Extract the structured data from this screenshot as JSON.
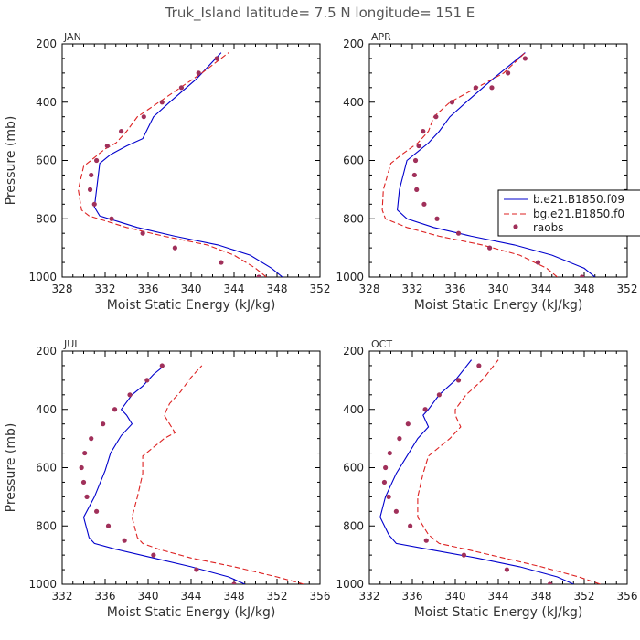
{
  "title": "Truk_Island  latitude= 7.5 N longitude= 151 E",
  "legend": {
    "entries": [
      "b.e21.B1850.f09",
      "bg.e21.B1850.f0",
      "raobs"
    ]
  },
  "colors": {
    "model_b": "#0000cc",
    "model_bg": "#dd2222",
    "raobs": "#a0305a"
  },
  "chart_data": [
    {
      "type": "line",
      "title": "JAN",
      "xlabel": "Moist Static Energy (kJ/kg)",
      "ylabel": "Pressure (mb)",
      "xlim": [
        328,
        352
      ],
      "ylim": [
        1000,
        200
      ],
      "xticks": [
        328,
        332,
        336,
        340,
        344,
        348,
        352
      ],
      "yticks": [
        200,
        400,
        600,
        800,
        1000
      ],
      "series": [
        {
          "name": "b.e21.B1850.f09",
          "style": "solid",
          "x": [
            348.5,
            347.5,
            345.5,
            342.5,
            338.5,
            335.0,
            331.5,
            331.0,
            331.2,
            331.5,
            332.5,
            334.0,
            335.5,
            336.5,
            338.0,
            340.5,
            342.8
          ],
          "y": [
            1000,
            970,
            925,
            890,
            860,
            830,
            790,
            760,
            700,
            610,
            580,
            550,
            525,
            450,
            400,
            320,
            230
          ]
        },
        {
          "name": "bg.e21.B1850.f0",
          "style": "dashed",
          "x": [
            347.0,
            346.0,
            344.0,
            341.5,
            337.5,
            334.0,
            330.5,
            329.8,
            329.5,
            330.0,
            331.0,
            332.0,
            333.0,
            334.0,
            335.0,
            337.0,
            339.0,
            341.0,
            343.5
          ],
          "y": [
            1000,
            970,
            925,
            890,
            860,
            830,
            790,
            770,
            700,
            620,
            590,
            560,
            540,
            500,
            450,
            400,
            350,
            300,
            230
          ]
        },
        {
          "name": "raobs",
          "style": "dots",
          "x": [
            346.3,
            342.8,
            338.5,
            335.5,
            332.6,
            331.0,
            330.6,
            330.7,
            331.2,
            332.2,
            333.5,
            335.6,
            337.3,
            339.1,
            340.7,
            342.4
          ],
          "y": [
            1000,
            950,
            900,
            850,
            800,
            750,
            700,
            650,
            600,
            550,
            500,
            450,
            400,
            350,
            300,
            250
          ]
        }
      ]
    },
    {
      "type": "line",
      "title": "APR",
      "xlabel": "Moist Static Energy (kJ/kg)",
      "ylabel": "Pressure (mb)",
      "xlim": [
        328,
        352
      ],
      "ylim": [
        1000,
        200
      ],
      "xticks": [
        328,
        332,
        336,
        340,
        344,
        348,
        352
      ],
      "yticks": [
        200,
        400,
        600,
        800,
        1000
      ],
      "series": [
        {
          "name": "b.e21.B1850.f09",
          "style": "solid",
          "x": [
            349.0,
            348.0,
            345.0,
            341.5,
            337.5,
            334.0,
            331.5,
            330.6,
            330.8,
            331.5,
            332.5,
            333.5,
            334.5,
            335.5,
            337.0,
            339.5,
            342.5
          ],
          "y": [
            1000,
            970,
            925,
            890,
            860,
            830,
            800,
            770,
            700,
            600,
            570,
            540,
            500,
            450,
            400,
            320,
            230
          ]
        },
        {
          "name": "bg.e21.B1850.f0",
          "style": "dashed",
          "x": [
            345.5,
            344.5,
            342.0,
            338.5,
            334.5,
            331.5,
            329.5,
            329.2,
            329.3,
            330.0,
            331.0,
            332.5,
            333.5,
            334.0,
            335.5,
            338.0,
            340.5,
            342.5
          ],
          "y": [
            1000,
            970,
            925,
            890,
            860,
            830,
            800,
            770,
            700,
            610,
            580,
            540,
            500,
            450,
            400,
            350,
            300,
            230
          ]
        },
        {
          "name": "raobs",
          "style": "dots",
          "x": [
            347.8,
            343.7,
            339.2,
            336.3,
            334.3,
            333.1,
            332.4,
            332.2,
            332.3,
            332.6,
            333.0,
            334.2,
            335.7,
            337.9,
            339.4,
            340.9,
            342.5
          ],
          "y": [
            1000,
            950,
            900,
            850,
            800,
            750,
            700,
            650,
            600,
            550,
            500,
            450,
            400,
            350,
            350,
            300,
            250
          ]
        }
      ]
    },
    {
      "type": "line",
      "title": "JUL",
      "xlabel": "Moist Static Energy (kJ/kg)",
      "ylabel": "Pressure (mb)",
      "xlim": [
        332,
        356
      ],
      "ylim": [
        1000,
        200
      ],
      "xticks": [
        332,
        336,
        340,
        344,
        348,
        352,
        356
      ],
      "yticks": [
        200,
        400,
        600,
        800,
        1000
      ],
      "series": [
        {
          "name": "b.e21.B1850.f09",
          "style": "solid",
          "x": [
            349.0,
            347.5,
            344.0,
            340.5,
            337.0,
            335.0,
            334.5,
            334.0,
            335.0,
            336.0,
            336.5,
            337.5,
            338.5,
            338.0,
            337.5,
            338.5,
            339.5,
            340.5,
            341.5
          ],
          "y": [
            1000,
            975,
            940,
            910,
            880,
            860,
            840,
            770,
            700,
            610,
            550,
            490,
            450,
            420,
            400,
            350,
            320,
            280,
            250
          ]
        },
        {
          "name": "bg.e21.B1850.f0",
          "style": "dashed",
          "x": [
            354.5,
            352.0,
            348.0,
            344.0,
            341.0,
            339.5,
            339.0,
            338.5,
            339.0,
            339.5,
            339.5,
            341.5,
            342.5,
            342.0,
            341.5,
            342.0,
            343.0,
            344.0,
            345.0
          ],
          "y": [
            1000,
            975,
            940,
            910,
            880,
            860,
            840,
            770,
            700,
            620,
            560,
            500,
            480,
            450,
            420,
            380,
            340,
            290,
            250
          ]
        },
        {
          "name": "raobs",
          "style": "dots",
          "x": [
            348.0,
            344.5,
            340.5,
            337.8,
            336.3,
            335.2,
            334.3,
            334.0,
            333.8,
            334.1,
            334.7,
            335.8,
            336.9,
            338.3,
            339.9,
            341.3
          ],
          "y": [
            1000,
            950,
            900,
            850,
            800,
            750,
            700,
            650,
            600,
            550,
            500,
            450,
            400,
            350,
            300,
            250
          ]
        }
      ]
    },
    {
      "type": "line",
      "title": "OCT",
      "xlabel": "Moist Static Energy (kJ/kg)",
      "ylabel": "Pressure (mb)",
      "xlim": [
        332,
        356
      ],
      "ylim": [
        1000,
        200
      ],
      "xticks": [
        332,
        336,
        340,
        344,
        348,
        352,
        356
      ],
      "yticks": [
        200,
        400,
        600,
        800,
        1000
      ],
      "series": [
        {
          "name": "b.e21.B1850.f09",
          "style": "solid",
          "x": [
            351.0,
            349.5,
            346.0,
            342.0,
            337.5,
            334.5,
            333.8,
            333.0,
            333.5,
            334.5,
            335.5,
            336.5,
            337.5,
            337.0,
            337.5,
            338.5,
            340.0,
            341.5
          ],
          "y": [
            1000,
            975,
            940,
            910,
            880,
            860,
            830,
            770,
            700,
            620,
            560,
            500,
            460,
            420,
            400,
            350,
            300,
            230
          ]
        },
        {
          "name": "bg.e21.B1850.f0",
          "style": "dashed",
          "x": [
            353.5,
            351.5,
            348.0,
            344.5,
            341.0,
            338.5,
            337.5,
            336.5,
            336.5,
            337.0,
            337.5,
            339.5,
            340.5,
            340.0,
            340.0,
            341.0,
            342.5,
            344.0
          ],
          "y": [
            1000,
            975,
            940,
            910,
            880,
            860,
            830,
            770,
            700,
            620,
            560,
            500,
            460,
            420,
            400,
            350,
            300,
            230
          ]
        },
        {
          "name": "raobs",
          "style": "dots",
          "x": [
            348.8,
            344.8,
            340.8,
            337.3,
            335.8,
            334.5,
            333.8,
            333.4,
            333.5,
            333.9,
            334.8,
            335.6,
            337.2,
            338.5,
            340.3,
            342.2
          ],
          "y": [
            1000,
            950,
            900,
            850,
            800,
            750,
            700,
            650,
            600,
            550,
            500,
            450,
            400,
            350,
            300,
            250
          ]
        }
      ]
    }
  ]
}
